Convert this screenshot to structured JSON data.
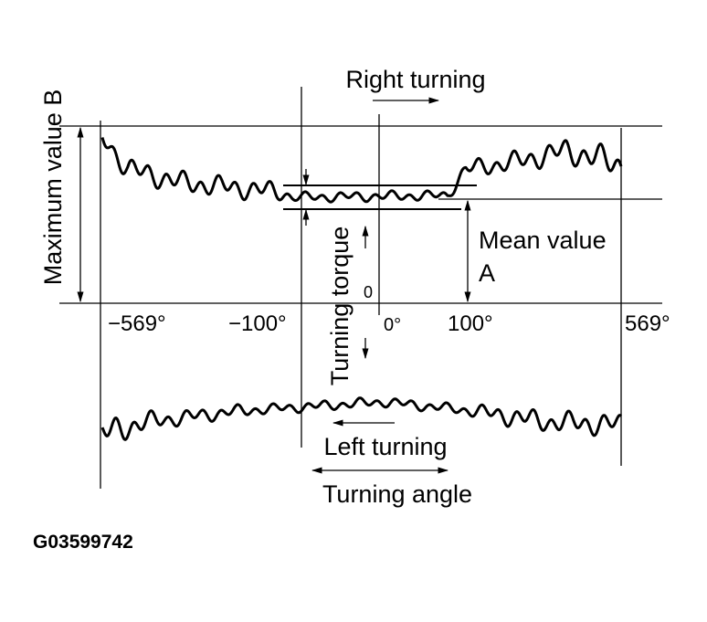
{
  "diagram": {
    "right_turning": "Right turning",
    "left_turning": "Left turning",
    "turning_angle": "Turning angle",
    "maximum_value": "Maximum value B",
    "mean_value": "Mean value",
    "mean_value_letter": "A",
    "turning_torque": "Turning torque",
    "zero": "0",
    "angle_labels": [
      "−569°",
      "−100°",
      "0°",
      "100°",
      "569°"
    ],
    "figure_id": "G03599742"
  }
}
